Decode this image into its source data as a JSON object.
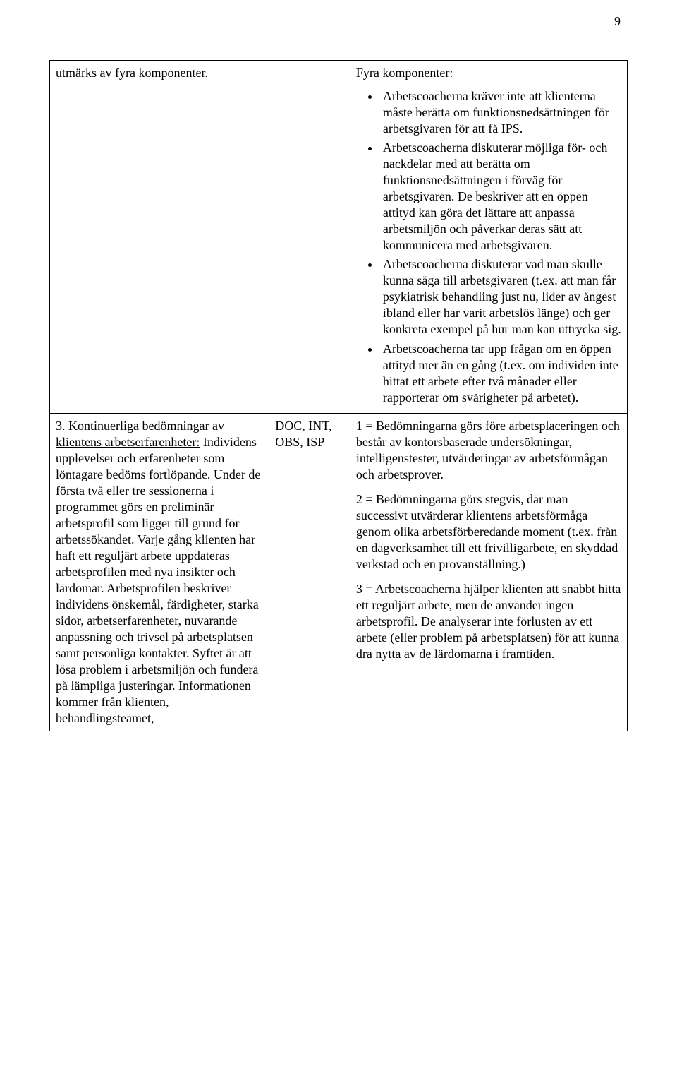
{
  "pageNumber": "9",
  "row1": {
    "col1": "utmärks av fyra komponenter.",
    "col2": "",
    "col3_heading": "Fyra komponenter:",
    "bullets": [
      "Arbetscoacherna kräver inte att klienterna måste berätta om funktionsnedsättningen för arbetsgivaren för att få IPS.",
      "Arbetscoacherna diskuterar möjliga för- och nackdelar med att berätta om funktionsnedsättningen i förväg för arbetsgivaren. De beskriver att en öppen attityd kan göra det lättare att anpassa arbetsmiljön och påverkar deras sätt att kommunicera med arbetsgivaren.",
      "Arbetscoacherna diskuterar vad man skulle kunna säga till arbetsgivaren (t.ex. att man får psykiatrisk behandling just nu, lider av ångest ibland eller har varit arbetslös länge) och ger konkreta exempel på hur man kan uttrycka sig.",
      "Arbetscoacherna tar upp frågan om en öppen attityd mer än en gång (t.ex. om individen inte hittat ett arbete efter två månader eller rapporterar om svårigheter på arbetet)."
    ]
  },
  "row2": {
    "col1_underlined": "3. Kontinuerliga bedömningar av klientens arbetserfarenheter:",
    "col1_rest": " Individens upplevelser och erfarenheter som löntagare bedöms fortlöpande. Under de första två eller tre sessionerna i programmet görs en preliminär arbetsprofil som ligger till grund för arbetssökandet. Varje gång klienten har haft ett reguljärt arbete uppdateras arbetsprofilen med nya insikter och lärdomar. Arbetsprofilen beskriver individens önskemål, färdigheter, starka sidor, arbetserfarenheter, nuvarande anpassning och trivsel på arbetsplatsen samt personliga kontakter. Syftet är att lösa problem i arbetsmiljön och fundera på lämpliga justeringar. Informationen kommer från klienten, behandlingsteamet,",
    "col2": "DOC, INT, OBS, ISP",
    "col3_p1": "1 = Bedömningarna görs före arbetsplaceringen och består av kontorsbaserade undersökningar, intelligenstester, utvärderingar av arbetsförmågan och arbetsprover.",
    "col3_p2": "2 = Bedömningarna görs stegvis, där man successivt utvärderar klientens arbetsförmåga genom olika arbetsförberedande moment (t.ex. från en dagverksamhet till ett frivilligarbete, en skyddad verkstad och en provanställning.)",
    "col3_p3": "3 = Arbetscoacherna hjälper klienten att snabbt hitta ett reguljärt arbete, men de använder ingen arbetsprofil. De analyserar inte förlusten av ett arbete (eller problem på arbetsplatsen) för att kunna dra nytta av de lärdomarna i framtiden."
  }
}
